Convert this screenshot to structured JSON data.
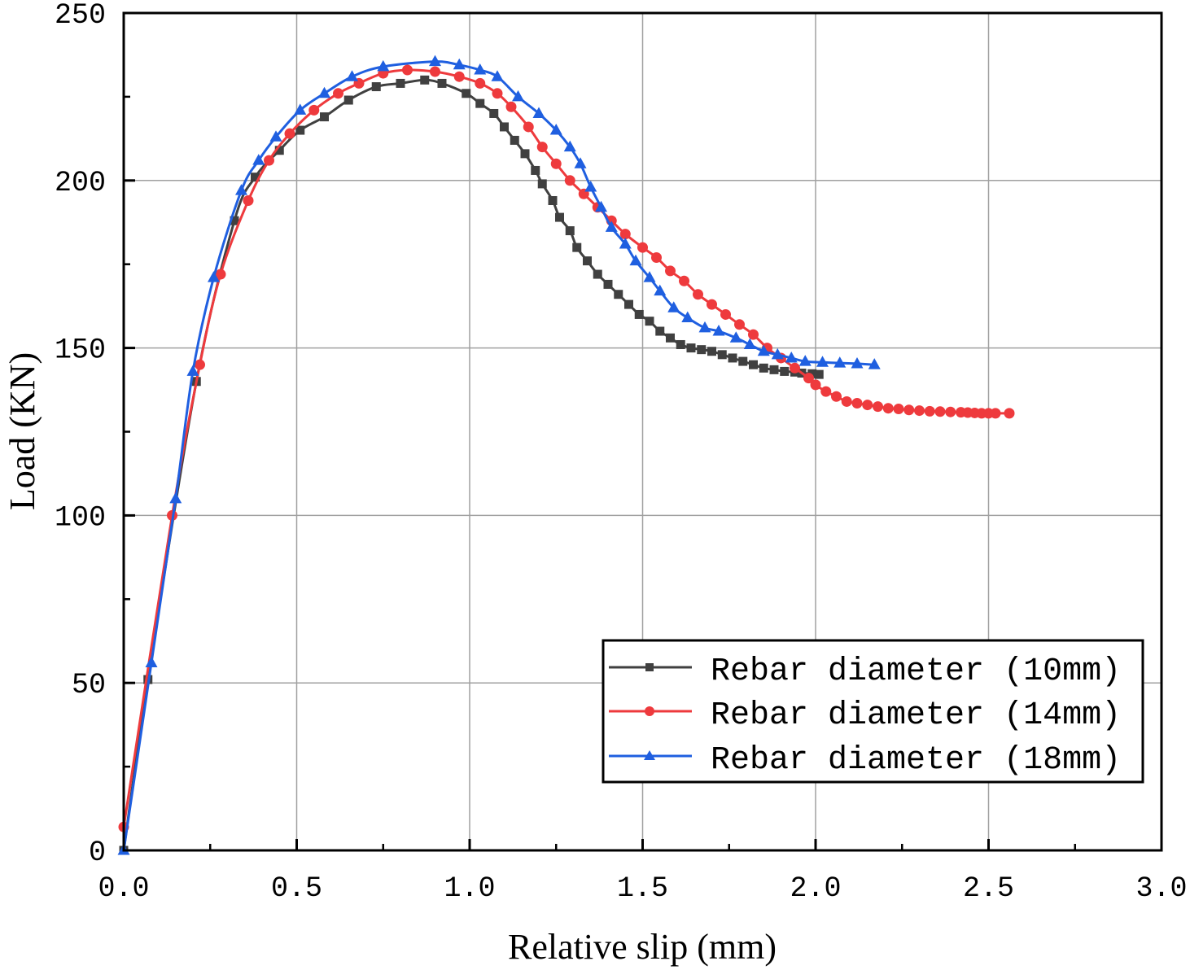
{
  "chart_data": {
    "type": "line",
    "title": "",
    "xlabel": "Relative slip (mm)",
    "ylabel": "Load (KN)",
    "xlim": [
      0,
      3.0
    ],
    "ylim": [
      0,
      250
    ],
    "grid": true,
    "x_ticks": [
      0,
      0.5,
      1.0,
      1.5,
      2.0,
      2.5,
      3.0
    ],
    "x_tick_labels": [
      "0.0",
      "0.5",
      "1.0",
      "1.5",
      "2.0",
      "2.5",
      "3.0"
    ],
    "y_ticks": [
      0,
      50,
      100,
      150,
      200,
      250
    ],
    "y_tick_labels": [
      "0",
      "50",
      "100",
      "150",
      "200",
      "250"
    ],
    "legend_position": "bottom-right",
    "series": [
      {
        "name": "Rebar diameter (10mm)",
        "color": "#404040",
        "marker": "square",
        "x": [
          0.0,
          0.07,
          0.21,
          0.32,
          0.38,
          0.45,
          0.51,
          0.58,
          0.65,
          0.73,
          0.8,
          0.87,
          0.92,
          0.99,
          1.03,
          1.07,
          1.1,
          1.13,
          1.16,
          1.19,
          1.21,
          1.24,
          1.26,
          1.29,
          1.31,
          1.34,
          1.37,
          1.4,
          1.43,
          1.46,
          1.49,
          1.52,
          1.55,
          1.58,
          1.61,
          1.64,
          1.67,
          1.7,
          1.73,
          1.76,
          1.79,
          1.82,
          1.85,
          1.88,
          1.91,
          1.94,
          1.96,
          1.99,
          2.01
        ],
        "y": [
          0,
          51,
          140,
          188,
          201,
          209,
          215,
          219,
          224,
          228,
          229,
          230,
          229,
          226,
          223,
          220,
          216,
          212,
          208,
          203,
          199,
          194,
          189,
          185,
          180,
          176,
          172,
          169,
          166,
          163,
          160,
          158,
          155,
          153,
          151,
          150,
          149.5,
          149,
          148,
          147,
          146,
          145,
          144,
          143.5,
          143,
          142.8,
          142.5,
          142.3,
          142.1
        ]
      },
      {
        "name": "Rebar diameter (14mm)",
        "color": "#ee3a3d",
        "marker": "circle",
        "x": [
          0.0,
          0.14,
          0.22,
          0.28,
          0.36,
          0.42,
          0.48,
          0.55,
          0.62,
          0.68,
          0.75,
          0.82,
          0.9,
          0.97,
          1.03,
          1.08,
          1.12,
          1.17,
          1.21,
          1.25,
          1.29,
          1.33,
          1.37,
          1.41,
          1.45,
          1.5,
          1.54,
          1.58,
          1.62,
          1.66,
          1.7,
          1.74,
          1.78,
          1.82,
          1.86,
          1.9,
          1.94,
          1.98,
          2.0,
          2.03,
          2.06,
          2.09,
          2.12,
          2.15,
          2.18,
          2.21,
          2.24,
          2.27,
          2.3,
          2.33,
          2.36,
          2.39,
          2.42,
          2.44,
          2.46,
          2.48,
          2.5,
          2.52,
          2.56
        ],
        "y": [
          7,
          100,
          145,
          172,
          194,
          206,
          214,
          221,
          226,
          229,
          232,
          233,
          232.5,
          231,
          229,
          226,
          222,
          216,
          210,
          205,
          200,
          196,
          192,
          188,
          184,
          180,
          177,
          173,
          170,
          166,
          163,
          160,
          157,
          154,
          150,
          147,
          144,
          141,
          139,
          137,
          135.5,
          134,
          133.5,
          133,
          132.5,
          132,
          131.8,
          131.5,
          131.3,
          131.1,
          131,
          130.9,
          130.8,
          130.7,
          130.6,
          130.5,
          130.5,
          130.5,
          130.5
        ]
      },
      {
        "name": "Rebar diameter (18mm)",
        "color": "#1f5fe0",
        "marker": "triangle",
        "x": [
          0.0,
          0.08,
          0.15,
          0.2,
          0.26,
          0.34,
          0.39,
          0.44,
          0.51,
          0.58,
          0.66,
          0.75,
          0.9,
          0.97,
          1.03,
          1.08,
          1.14,
          1.2,
          1.25,
          1.29,
          1.32,
          1.35,
          1.38,
          1.41,
          1.45,
          1.48,
          1.52,
          1.55,
          1.59,
          1.63,
          1.68,
          1.72,
          1.77,
          1.81,
          1.85,
          1.89,
          1.93,
          1.97,
          2.02,
          2.07,
          2.12,
          2.17
        ],
        "y": [
          0,
          56,
          105,
          143,
          171,
          197,
          206,
          213,
          221,
          226,
          231,
          234,
          235.5,
          234.5,
          233,
          231,
          225,
          220,
          215,
          210,
          205,
          198,
          192,
          186,
          181,
          176,
          171,
          167,
          162,
          159,
          156,
          155,
          153,
          151,
          149,
          148,
          147,
          146,
          145.7,
          145.5,
          145.3,
          145
        ]
      }
    ]
  }
}
